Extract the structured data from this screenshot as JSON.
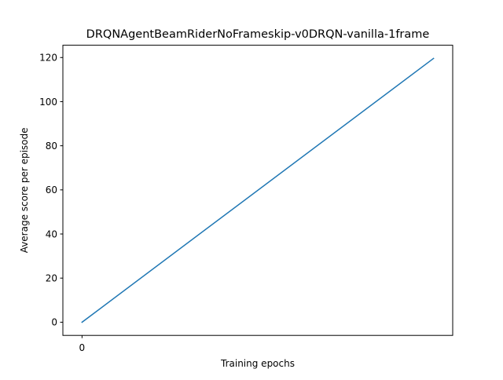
{
  "chart_data": {
    "type": "line",
    "title": "DRQNAgentBeamRiderNoFrameskip-v0DRQN-vanilla-1frame",
    "xlabel": "Training epochs",
    "ylabel": "Average score per episode",
    "x": [
      0,
      1
    ],
    "x_tick_values": [
      0
    ],
    "x_tick_labels": [
      "0"
    ],
    "xlim": [
      -0.0545,
      1.0545
    ],
    "series": [
      {
        "values": [
          0,
          119.6
        ],
        "color": "#1f77b4"
      }
    ],
    "y_tick_values": [
      0,
      20,
      40,
      60,
      80,
      100,
      120
    ],
    "y_tick_labels": [
      "0",
      "20",
      "40",
      "60",
      "80",
      "100",
      "120"
    ],
    "ylim": [
      -5.98,
      125.58
    ],
    "grid": false,
    "legend": "none"
  }
}
